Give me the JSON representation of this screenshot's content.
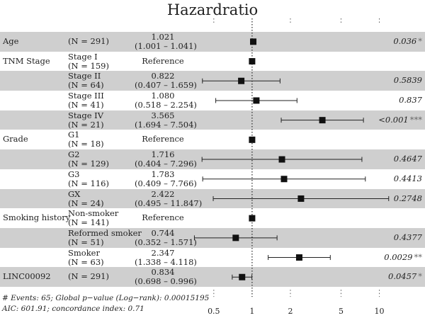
{
  "chart_data": {
    "type": "forest",
    "title": "Hazardratio",
    "x_scale": "log",
    "xlim": [
      0.35,
      13
    ],
    "x_ticks": [
      0.5,
      1,
      2,
      5,
      10
    ],
    "x_tick_labels": [
      "0.5",
      "1",
      "2",
      "5",
      "10"
    ],
    "reference_line": 1,
    "rows": [
      {
        "variable": "Age",
        "level": "",
        "n": "(N = 291)",
        "estimate": "1.021",
        "ci": "(1.001 – 1.041)",
        "hr": 1.021,
        "lower": 1.001,
        "upper": 1.041,
        "p": "0.036",
        "stars": "*",
        "shaded": true
      },
      {
        "variable": "TNM Stage",
        "level": "Stage I",
        "n": "(N = 159)",
        "estimate": "Reference",
        "ci": "",
        "hr": 1,
        "lower": null,
        "upper": null,
        "p": "",
        "stars": "",
        "shaded": false
      },
      {
        "variable": "",
        "level": "Stage II",
        "n": "(N = 64)",
        "estimate": "0.822",
        "ci": "(0.407 – 1.659)",
        "hr": 0.822,
        "lower": 0.407,
        "upper": 1.659,
        "p": "0.5839",
        "stars": "",
        "shaded": true
      },
      {
        "variable": "",
        "level": "Stage III",
        "n": "(N = 41)",
        "estimate": "1.080",
        "ci": "(0.518 – 2.254)",
        "hr": 1.08,
        "lower": 0.518,
        "upper": 2.254,
        "p": "0.837",
        "stars": "",
        "shaded": false
      },
      {
        "variable": "",
        "level": "Stage IV",
        "n": "(N = 21)",
        "estimate": "3.565",
        "ci": "(1.694 – 7.504)",
        "hr": 3.565,
        "lower": 1.694,
        "upper": 7.504,
        "p": "<0.001",
        "stars": "***",
        "shaded": true
      },
      {
        "variable": "Grade",
        "level": "G1",
        "n": "(N = 18)",
        "estimate": "Reference",
        "ci": "",
        "hr": 1,
        "lower": null,
        "upper": null,
        "p": "",
        "stars": "",
        "shaded": false
      },
      {
        "variable": "",
        "level": "G2",
        "n": "(N = 129)",
        "estimate": "1.716",
        "ci": "(0.404 – 7.296)",
        "hr": 1.716,
        "lower": 0.404,
        "upper": 7.296,
        "p": "0.4647",
        "stars": "",
        "shaded": true
      },
      {
        "variable": "",
        "level": "G3",
        "n": "(N = 116)",
        "estimate": "1.783",
        "ci": "(0.409 – 7.766)",
        "hr": 1.783,
        "lower": 0.409,
        "upper": 7.766,
        "p": "0.4413",
        "stars": "",
        "shaded": false
      },
      {
        "variable": "",
        "level": "GX",
        "n": "(N = 24)",
        "estimate": "2.422",
        "ci": "(0.495 – 11.847)",
        "hr": 2.422,
        "lower": 0.495,
        "upper": 11.847,
        "p": "0.2748",
        "stars": "",
        "shaded": true
      },
      {
        "variable": "Smoking history",
        "level": "Non-smoker",
        "n": "(N = 141)",
        "estimate": "Reference",
        "ci": "",
        "hr": 1,
        "lower": null,
        "upper": null,
        "p": "",
        "stars": "",
        "shaded": false
      },
      {
        "variable": "",
        "level": "Reformed smoker",
        "n": "(N = 51)",
        "estimate": "0.744",
        "ci": "(0.352 – 1.571)",
        "hr": 0.744,
        "lower": 0.352,
        "upper": 1.571,
        "p": "0.4377",
        "stars": "",
        "shaded": true
      },
      {
        "variable": "",
        "level": "Smoker",
        "n": "(N = 63)",
        "estimate": "2.347",
        "ci": "(1.338 – 4.118)",
        "hr": 2.347,
        "lower": 1.338,
        "upper": 4.118,
        "p": "0.0029",
        "stars": "**",
        "shaded": false
      },
      {
        "variable": "LINC00092",
        "level": "",
        "n": "(N = 291)",
        "estimate": "0.834",
        "ci": "(0.698 – 0.996)",
        "hr": 0.834,
        "lower": 0.698,
        "upper": 0.996,
        "p": "0.0457",
        "stars": "*",
        "shaded": true
      }
    ],
    "footnote": [
      "# Events: 65; Global p−value (Log−rank): 0.00015195",
      "AIC: 601.91; concordance index: 0.71"
    ]
  }
}
